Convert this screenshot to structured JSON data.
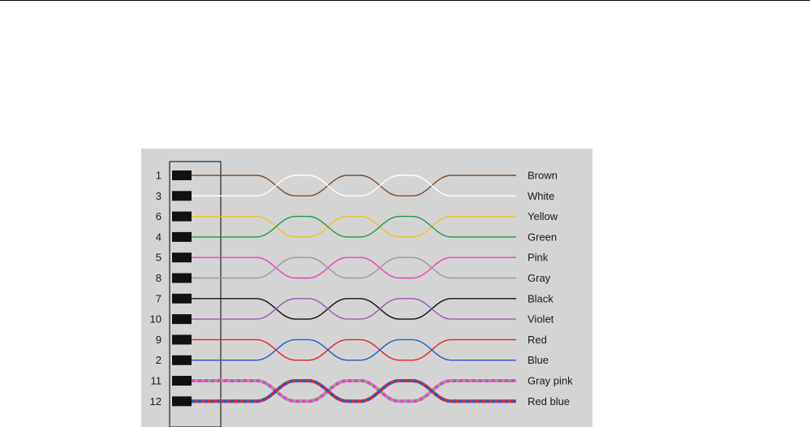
{
  "diagram": {
    "colors": {
      "background": "#d4d4d4",
      "frame": "#000000",
      "pin": "#111111"
    },
    "pairs": [
      {
        "wires": [
          {
            "pin": "1",
            "label": "Brown",
            "colors": [
              "#7a4f33"
            ]
          },
          {
            "pin": "3",
            "label": "White",
            "colors": [
              "#ffffff"
            ]
          }
        ]
      },
      {
        "wires": [
          {
            "pin": "6",
            "label": "Yellow",
            "colors": [
              "#f2c21d"
            ]
          },
          {
            "pin": "4",
            "label": "Green",
            "colors": [
              "#1f9a50"
            ]
          }
        ]
      },
      {
        "wires": [
          {
            "pin": "5",
            "label": "Pink",
            "colors": [
              "#ee3fc0"
            ]
          },
          {
            "pin": "8",
            "label": "Gray",
            "colors": [
              "#9a9a9a"
            ]
          }
        ]
      },
      {
        "wires": [
          {
            "pin": "7",
            "label": "Black",
            "colors": [
              "#111111"
            ]
          },
          {
            "pin": "10",
            "label": "Violet",
            "colors": [
              "#9b59b6"
            ]
          }
        ]
      },
      {
        "wires": [
          {
            "pin": "9",
            "label": "Red",
            "colors": [
              "#e0262a"
            ]
          },
          {
            "pin": "2",
            "label": "Blue",
            "colors": [
              "#1d5fc8"
            ]
          }
        ]
      },
      {
        "wires": [
          {
            "pin": "11",
            "label": "Gray pink",
            "colors": [
              "#9a9a9a",
              "#ee3fc0"
            ]
          },
          {
            "pin": "12",
            "label": "Red blue",
            "colors": [
              "#e0262a",
              "#1d5fc8"
            ]
          }
        ]
      }
    ]
  }
}
